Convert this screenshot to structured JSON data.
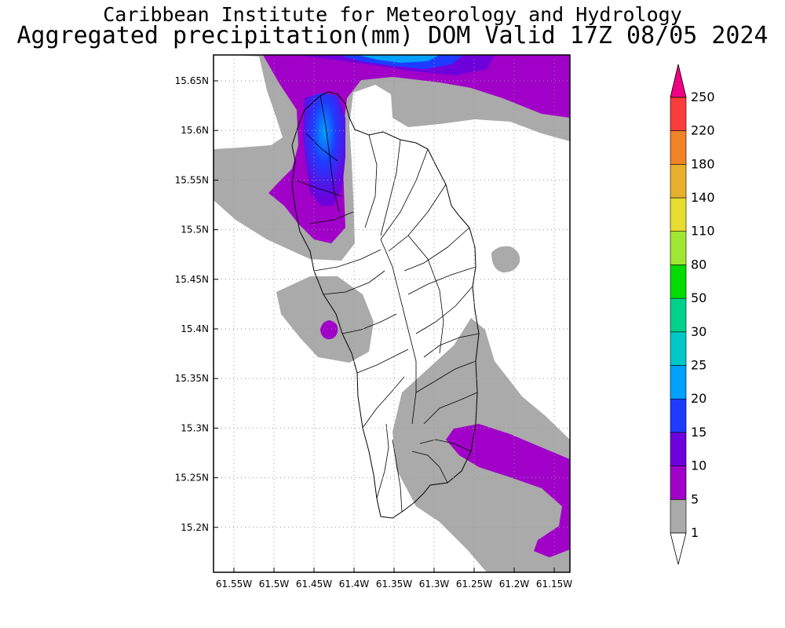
{
  "header": {
    "title": "Caribbean Institute for Meteorology and Hydrology",
    "subtitle": "Aggregated precipitation(mm) DOM Valid 17Z 08/05 2024"
  },
  "map": {
    "lat_labels": [
      "15.65N",
      "15.6N",
      "15.55N",
      "15.5N",
      "15.45N",
      "15.4N",
      "15.35N",
      "15.3N",
      "15.25N",
      "15.2N"
    ],
    "lon_labels": [
      "61.55W",
      "61.5W",
      "61.45W",
      "61.4W",
      "61.35W",
      "61.3W",
      "61.25W",
      "61.2W",
      "61.15W"
    ]
  },
  "colorbar": {
    "levels": [
      "1",
      "5",
      "10",
      "15",
      "20",
      "25",
      "30",
      "50",
      "80",
      "110",
      "140",
      "180",
      "220",
      "250"
    ],
    "colors": [
      "#aaaaaa",
      "#a000c8",
      "#6e00dc",
      "#1e3cff",
      "#00a0ff",
      "#00c8c8",
      "#00d28c",
      "#00dc00",
      "#a0e632",
      "#e6dc32",
      "#e6af2d",
      "#f08228",
      "#fa3c3c",
      "#f00082"
    ]
  }
}
